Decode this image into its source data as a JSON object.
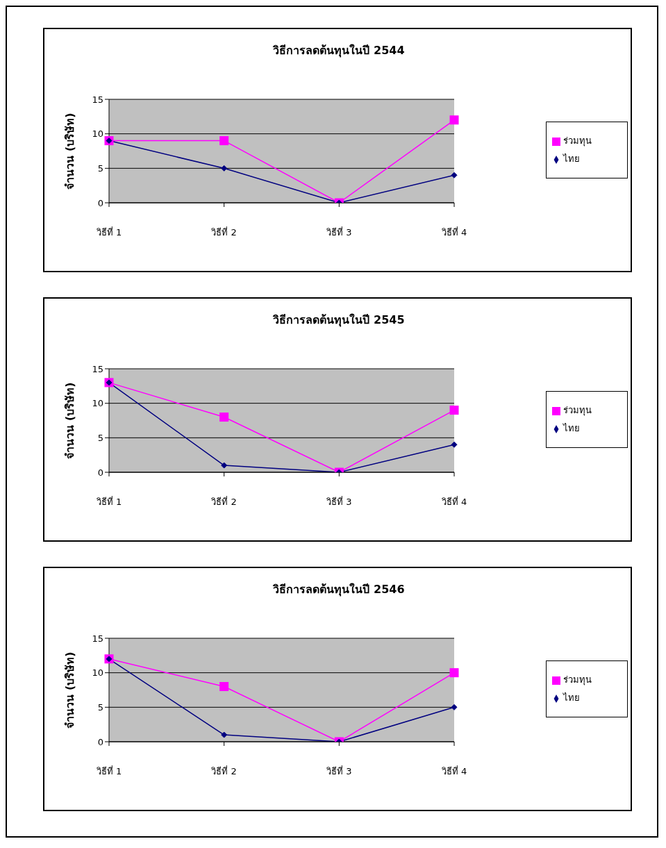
{
  "chart_data": [
    {
      "type": "line",
      "title": "วิธีการลดต้นทุนในปี 2544",
      "ylabel": "จำนวน (บริษัท)",
      "categories": [
        "วิธีที่ 1",
        "วิธีที่ 2",
        "วิธีที่ 3",
        "วิธีที่ 4"
      ],
      "series": [
        {
          "name": "ร่วมทุน",
          "color": "#ff00ff",
          "marker": "square",
          "values": [
            9,
            9,
            0,
            12
          ]
        },
        {
          "name": "ไทย",
          "color": "#000080",
          "marker": "diamond",
          "values": [
            9,
            5,
            0,
            4
          ]
        }
      ],
      "ylim": [
        0,
        15
      ],
      "yticks": [
        0,
        5,
        10,
        15
      ],
      "grid": "y",
      "legend": "right"
    },
    {
      "type": "line",
      "title": "วิธีการลดต้นทุนในปี 2545",
      "ylabel": "จำนวน (บริษัท)",
      "categories": [
        "วิธีที่ 1",
        "วิธีที่ 2",
        "วิธีที่ 3",
        "วิธีที่ 4"
      ],
      "series": [
        {
          "name": "ร่วมทุน",
          "color": "#ff00ff",
          "marker": "square",
          "values": [
            13,
            8,
            0,
            9
          ]
        },
        {
          "name": "ไทย",
          "color": "#000080",
          "marker": "diamond",
          "values": [
            13,
            1,
            0,
            4
          ]
        }
      ],
      "ylim": [
        0,
        15
      ],
      "yticks": [
        0,
        5,
        10,
        15
      ],
      "grid": "y",
      "legend": "right"
    },
    {
      "type": "line",
      "title": "วิธีการลดต้นทุนในปี 2546",
      "ylabel": "จำนวน (บริษัท)",
      "categories": [
        "วิธีที่ 1",
        "วิธีที่ 2",
        "วิธีที่ 3",
        "วิธีที่ 4"
      ],
      "series": [
        {
          "name": "ร่วมทุน",
          "color": "#ff00ff",
          "marker": "square",
          "values": [
            12,
            8,
            0,
            10
          ]
        },
        {
          "name": "ไทย",
          "color": "#000080",
          "marker": "diamond",
          "values": [
            12,
            1,
            0,
            5
          ]
        }
      ],
      "ylim": [
        0,
        15
      ],
      "yticks": [
        0,
        5,
        10,
        15
      ],
      "grid": "y",
      "legend": "right"
    }
  ]
}
